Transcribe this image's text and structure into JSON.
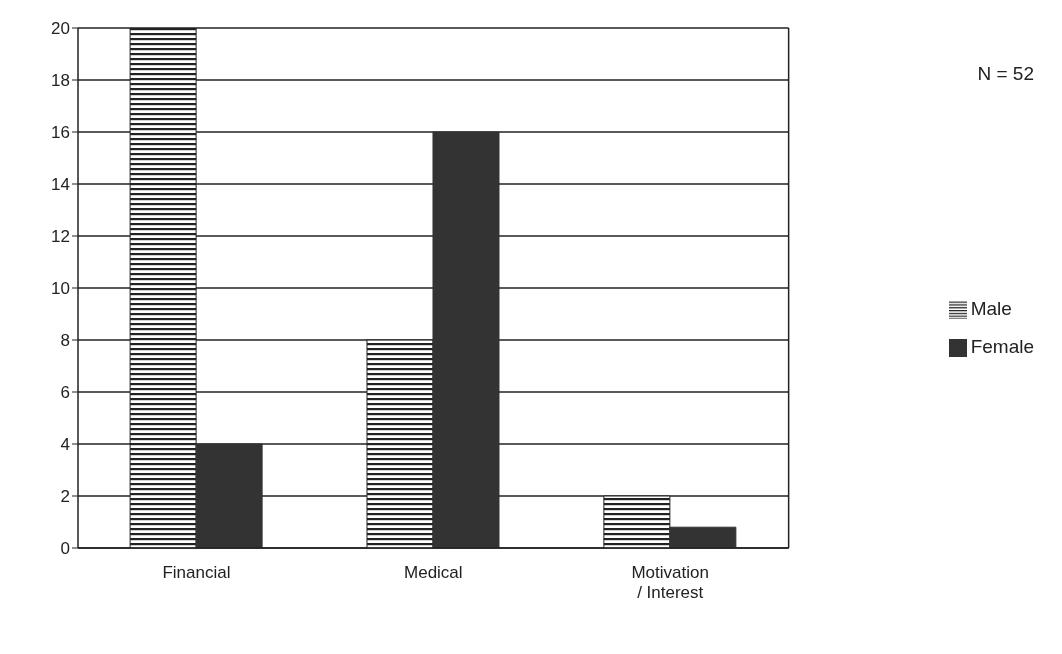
{
  "chart_data": {
    "type": "bar",
    "categories": [
      "Financial",
      "Medical",
      "Motivation\n/ Interest"
    ],
    "series": [
      {
        "name": "Male",
        "color": "#222222",
        "values": [
          20,
          8,
          2
        ]
      },
      {
        "name": "Female",
        "color": "#333333",
        "values": [
          4,
          16,
          0.8
        ]
      }
    ],
    "ylim": [
      0,
      20
    ],
    "yticks": [
      0,
      2,
      4,
      6,
      8,
      10,
      12,
      14,
      16,
      18,
      20
    ],
    "grid": "y",
    "legend": "right",
    "annotations": [
      "N = 52"
    ]
  }
}
